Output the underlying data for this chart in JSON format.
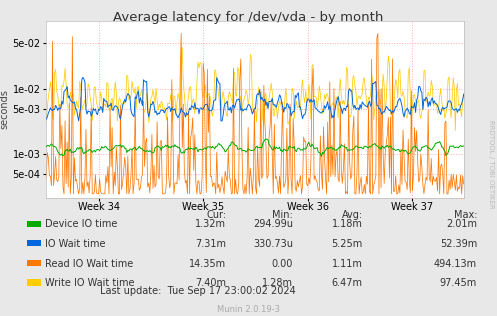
{
  "title": "Average latency for /dev/vda - by month",
  "ylabel": "seconds",
  "watermark": "RRDTOOL / TOBI OETIKER",
  "munin_version": "Munin 2.0.19-3",
  "last_update": "Last update:  Tue Sep 17 23:00:02 2024",
  "background_color": "#e8e8e8",
  "plot_bg_color": "#ffffff",
  "grid_color": "#ffaaaa",
  "ylim_log_min": 0.00022,
  "ylim_log_max": 0.11,
  "week_labels": [
    "Week 34",
    "Week 35",
    "Week 36",
    "Week 37"
  ],
  "ytick_labels": [
    "5e-04",
    "1e-03",
    "5e-03",
    "1e-02",
    "5e-02"
  ],
  "ytick_values": [
    0.0005,
    0.001,
    0.005,
    0.01,
    0.05
  ],
  "legend": [
    {
      "label": "Device IO time",
      "color": "#00aa00",
      "cur": "1.32m",
      "min": "294.99u",
      "avg": "1.18m",
      "max": "2.01m"
    },
    {
      "label": "IO Wait time",
      "color": "#0066dd",
      "cur": "7.31m",
      "min": "330.73u",
      "avg": "5.25m",
      "max": "52.39m"
    },
    {
      "label": "Read IO Wait time",
      "color": "#ff7700",
      "cur": "14.35m",
      "min": "0.00",
      "avg": "1.11m",
      "max": "494.13m"
    },
    {
      "label": "Write IO Wait time",
      "color": "#ffcc00",
      "cur": "7.40m",
      "min": "1.28m",
      "avg": "6.47m",
      "max": "97.45m"
    }
  ],
  "n_points": 400,
  "seed": 42
}
